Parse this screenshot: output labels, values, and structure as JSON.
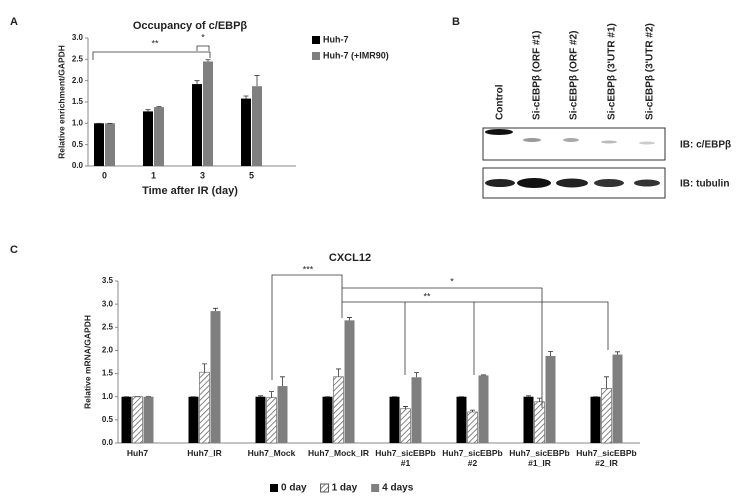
{
  "panels": [
    "A",
    "B",
    "C"
  ],
  "blot": {
    "lanes": [
      "Control",
      "Si-cEBPβ (ORF #1)",
      "Si-cEBPβ (ORF #2)",
      "Si-cEBPβ (3'UTR #1)",
      "Si-cEBPβ (3'UTR #2)"
    ],
    "rows": [
      "IB: c/EBPβ",
      "IB: tubulin"
    ]
  },
  "chart_data": [
    {
      "type": "bar",
      "title": "Occupancy of c/EBPβ",
      "x_label": "Time after IR (day)",
      "y_label": "Relative enrichment/GAPDH",
      "categories": [
        "0",
        "1",
        "3",
        "5"
      ],
      "series": [
        {
          "name": "Huh-7",
          "color": "#000000",
          "values": [
            1.0,
            1.28,
            1.92,
            1.58
          ],
          "errors": [
            0.0,
            0.04,
            0.08,
            0.06
          ]
        },
        {
          "name": "Huh-7 (+IMR90)",
          "color": "#7f7f7f",
          "values": [
            1.0,
            1.38,
            2.45,
            1.87
          ],
          "errors": [
            0.0,
            0.01,
            0.04,
            0.25
          ]
        }
      ],
      "ylim": [
        0,
        3
      ],
      "yticks": [
        {
          "value": 0,
          "label": "0.0"
        },
        0.5,
        {
          "value": 1,
          "label": "1.0"
        },
        1.5,
        {
          "value": 2,
          "label": "2.0"
        },
        2.5,
        {
          "value": 3,
          "label": "3.0"
        }
      ],
      "annotations": [
        "**",
        "*"
      ],
      "legend": "right"
    },
    {
      "type": "bar",
      "title": "CXCL12",
      "y_label": "Relative mRNA/GAPDH",
      "categories": [
        "Huh7",
        "Huh7_IR",
        "Huh7_Mock",
        "Huh7_Mock_IR",
        "Huh7_sicEBPb #1",
        "Huh7_sicEBPb #2",
        "Huh7_sicEBPb #1_IR",
        "Huh7_sicEBPb #2_IR"
      ],
      "series": [
        {
          "name": "0 day",
          "color": "#000000",
          "values": [
            1,
            1,
            1,
            1,
            1,
            1,
            1,
            1
          ],
          "errors": [
            0,
            0,
            0.02,
            0,
            0,
            0,
            0.02,
            0
          ]
        },
        {
          "name": "1 day",
          "color": "#ffffff",
          "pattern": "hatch",
          "values": [
            1,
            1.53,
            0.98,
            1.43,
            0.74,
            0.67,
            0.89,
            1.18
          ],
          "errors": [
            0,
            0.18,
            0.13,
            0.17,
            0.05,
            0.04,
            0.08,
            0.25
          ]
        },
        {
          "name": "4 days",
          "color": "#7f7f7f",
          "values": [
            1,
            2.85,
            1.23,
            2.65,
            1.42,
            1.46,
            1.88,
            1.91
          ],
          "errors": [
            0,
            0.06,
            0.2,
            0.06,
            0.1,
            0.01,
            0.1,
            0.06
          ]
        }
      ],
      "ylim": [
        0,
        3.5
      ],
      "yticks": [
        {
          "value": 0,
          "label": "0.0"
        },
        0.5,
        {
          "value": 1,
          "label": "1.0"
        },
        1.5,
        {
          "value": 2,
          "label": "2.0"
        },
        2.5,
        {
          "value": 3,
          "label": "3.0"
        },
        3.5
      ],
      "annotations": [
        "***",
        "*",
        "**"
      ],
      "legend": "bottom"
    }
  ]
}
